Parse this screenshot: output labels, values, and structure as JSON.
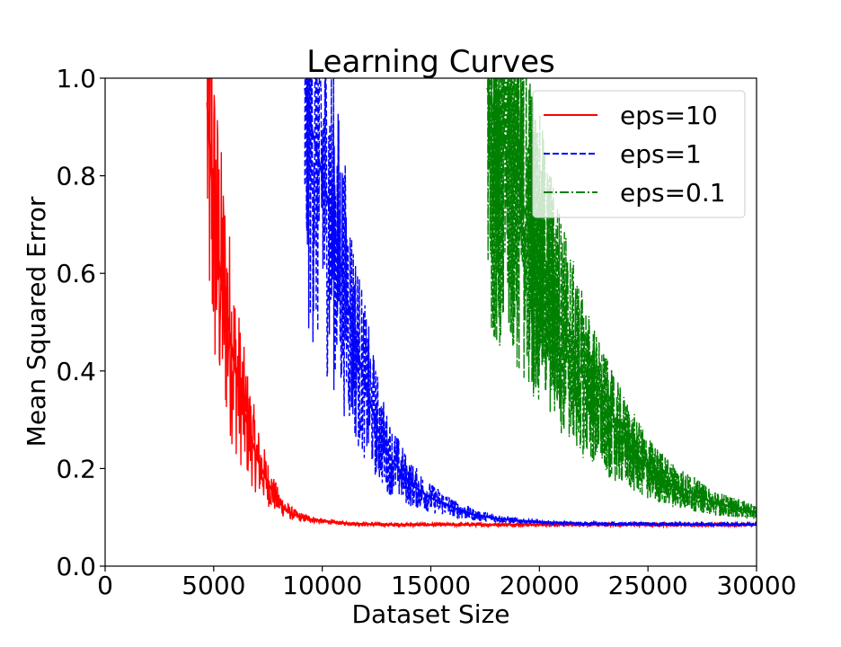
{
  "chart_data": {
    "type": "line",
    "title": "Learning Curves",
    "xlabel": "Dataset Size",
    "ylabel": "Mean Squared Error",
    "xlim": [
      0,
      30000
    ],
    "ylim": [
      0.0,
      1.0
    ],
    "xticks": [
      0,
      5000,
      10000,
      15000,
      20000,
      25000,
      30000
    ],
    "xtick_labels": [
      "0",
      "5000",
      "10000",
      "15000",
      "20000",
      "25000",
      "30000"
    ],
    "yticks": [
      0.0,
      0.2,
      0.4,
      0.6,
      0.8,
      1.0
    ],
    "ytick_labels": [
      "0.0",
      "0.2",
      "0.4",
      "0.6",
      "0.8",
      "1.0"
    ],
    "grid": false,
    "legend_position": "top-right",
    "series": [
      {
        "name": "eps=10",
        "color": "#ff0000",
        "line_style": "solid",
        "x": [
          4700,
          5000,
          5300,
          5600,
          6000,
          6500,
          7000,
          7500,
          8000,
          8500,
          9000,
          10000,
          11000,
          12000,
          13000,
          15000,
          20000,
          25000,
          30000
        ],
        "y": [
          0.95,
          0.72,
          0.6,
          0.52,
          0.4,
          0.3,
          0.22,
          0.17,
          0.13,
          0.11,
          0.1,
          0.092,
          0.088,
          0.086,
          0.085,
          0.085,
          0.085,
          0.085,
          0.085
        ]
      },
      {
        "name": "eps=1",
        "color": "#0000ff",
        "line_style": "dashed",
        "x": [
          9200,
          9500,
          10000,
          10500,
          11000,
          11500,
          12000,
          12500,
          13000,
          14000,
          15000,
          16000,
          17000,
          18000,
          19000,
          20000,
          22000,
          25000,
          30000
        ],
        "y": [
          0.98,
          0.9,
          0.8,
          0.7,
          0.58,
          0.46,
          0.37,
          0.29,
          0.23,
          0.17,
          0.14,
          0.12,
          0.105,
          0.098,
          0.093,
          0.09,
          0.087,
          0.086,
          0.085
        ]
      },
      {
        "name": "eps=0.1",
        "color": "#008000",
        "line_style": "dashdot",
        "x": [
          17600,
          18000,
          18500,
          19000,
          19500,
          20000,
          20500,
          21000,
          21500,
          22000,
          22500,
          23000,
          24000,
          25000,
          26000,
          27000,
          28000,
          29000,
          30000
        ],
        "y": [
          0.98,
          0.92,
          0.85,
          0.78,
          0.7,
          0.63,
          0.56,
          0.5,
          0.44,
          0.39,
          0.35,
          0.31,
          0.25,
          0.2,
          0.17,
          0.15,
          0.13,
          0.12,
          0.11
        ]
      }
    ]
  }
}
